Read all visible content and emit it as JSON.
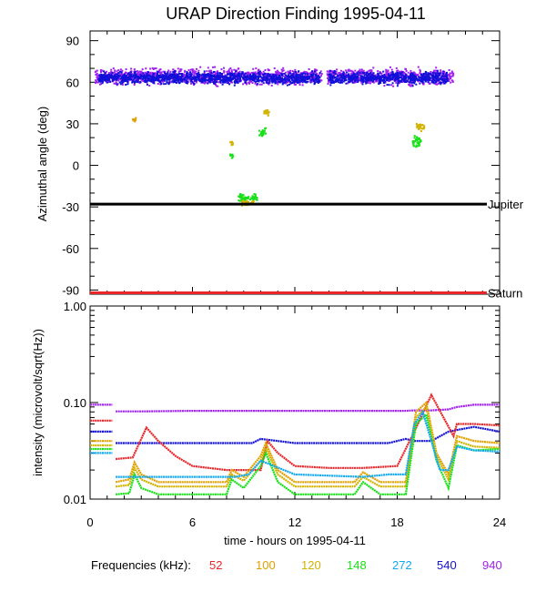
{
  "chart_data": [
    {
      "type": "scatter",
      "title": "URAP Direction Finding  1995-04-11",
      "ylabel": "Azimuthal angle (deg)",
      "xlim": [
        0,
        24
      ],
      "ylim": [
        -93,
        97
      ],
      "yticks": [
        90,
        60,
        30,
        0,
        -30,
        -60,
        -90
      ],
      "reference_lines": [
        {
          "name": "Jupiter",
          "y": -28,
          "color": "#000000"
        },
        {
          "name": "Saturn",
          "y": -92,
          "color": "#e8262a"
        }
      ],
      "clusters": [
        {
          "freq": "940",
          "x_range": [
            0.3,
            13.6
          ],
          "y_center": 64,
          "y_spread": 8
        },
        {
          "freq": "540",
          "x_range": [
            0.5,
            13.5
          ],
          "y_center": 63,
          "y_spread": 6
        },
        {
          "freq": "940",
          "x_range": [
            13.9,
            21.3
          ],
          "y_center": 64,
          "y_spread": 8
        },
        {
          "freq": "540",
          "x_range": [
            14.0,
            21.0
          ],
          "y_center": 63,
          "y_spread": 6
        },
        {
          "freq": "148",
          "x_range": [
            8.7,
            9.8
          ],
          "y_center": -24,
          "y_spread": 4
        },
        {
          "freq": "120",
          "x_range": [
            8.9,
            9.6
          ],
          "y_center": -27,
          "y_spread": 3
        },
        {
          "freq": "148",
          "x_range": [
            18.9,
            19.4
          ],
          "y_center": 17,
          "y_spread": 6
        },
        {
          "freq": "120",
          "x_range": [
            19.1,
            19.6
          ],
          "y_center": 28,
          "y_spread": 4
        },
        {
          "freq": "148",
          "x_range": [
            8.2,
            8.4
          ],
          "y_center": 7,
          "y_spread": 3
        },
        {
          "freq": "120",
          "x_range": [
            8.2,
            8.4
          ],
          "y_center": 16,
          "y_spread": 3
        },
        {
          "freq": "148",
          "x_range": [
            9.9,
            10.3
          ],
          "y_center": 24,
          "y_spread": 5
        },
        {
          "freq": "120",
          "x_range": [
            10.2,
            10.5
          ],
          "y_center": 38,
          "y_spread": 3
        },
        {
          "freq": "100",
          "x_range": [
            2.5,
            2.7
          ],
          "y_center": 33,
          "y_spread": 3
        }
      ]
    },
    {
      "type": "line",
      "ylabel": "intensity (microvolt/sqrt(Hz))",
      "xlabel": "time - hours on 1995-04-11",
      "xlim": [
        0,
        24
      ],
      "xticks": [
        0,
        6,
        12,
        18,
        24
      ],
      "ylim_log": [
        0.01,
        1.0
      ],
      "yticks": [
        "1.00",
        "0.10",
        "0.01"
      ],
      "ytick_values": [
        1.0,
        0.1,
        0.01
      ],
      "data_gap": [
        1.3,
        1.5
      ],
      "series": [
        {
          "freq": "940",
          "color": "#a020f0",
          "x": [
            0,
            1.3,
            1.5,
            3,
            6,
            9,
            12,
            15,
            17,
            18.5,
            19,
            20,
            21,
            21.5,
            22.5,
            24
          ],
          "y": [
            0.095,
            0.095,
            0.081,
            0.081,
            0.082,
            0.082,
            0.082,
            0.082,
            0.082,
            0.082,
            0.083,
            0.083,
            0.085,
            0.09,
            0.095,
            0.095
          ]
        },
        {
          "freq": "540",
          "color": "#1010d8",
          "x": [
            0,
            1.3,
            1.5,
            6,
            9.5,
            10,
            12,
            17.5,
            18.5,
            19,
            20,
            21,
            21.5,
            22.5,
            24
          ],
          "y": [
            0.05,
            0.05,
            0.038,
            0.038,
            0.038,
            0.042,
            0.038,
            0.038,
            0.042,
            0.04,
            0.04,
            0.05,
            0.052,
            0.056,
            0.05
          ]
        },
        {
          "freq": "52",
          "color": "#e8262a",
          "x": [
            0,
            1.3,
            1.5,
            2.5,
            3.3,
            4,
            5,
            6,
            8,
            10,
            10.4,
            11,
            12,
            14,
            16,
            18,
            19,
            20,
            21.3,
            21.5,
            22.5,
            24
          ],
          "y": [
            0.065,
            0.065,
            0.026,
            0.027,
            0.055,
            0.04,
            0.028,
            0.022,
            0.02,
            0.02,
            0.04,
            0.03,
            0.022,
            0.021,
            0.021,
            0.022,
            0.05,
            0.12,
            0.045,
            0.06,
            0.06,
            0.058
          ]
        },
        {
          "freq": "100",
          "color": "#e0a000",
          "x": [
            0,
            1.3,
            1.5,
            2.3,
            2.6,
            3,
            4,
            6,
            8,
            8.3,
            9,
            10,
            10.3,
            11,
            12,
            15.5,
            16,
            17,
            18.5,
            19.1,
            19.7,
            20.3,
            21,
            21.5,
            22.5,
            24
          ],
          "y": [
            0.04,
            0.04,
            0.015,
            0.016,
            0.024,
            0.018,
            0.015,
            0.015,
            0.015,
            0.02,
            0.017,
            0.028,
            0.038,
            0.02,
            0.015,
            0.015,
            0.019,
            0.015,
            0.015,
            0.08,
            0.1,
            0.03,
            0.018,
            0.045,
            0.04,
            0.038
          ]
        },
        {
          "freq": "120",
          "color": "#d2b400",
          "x": [
            0,
            1.3,
            1.5,
            2.3,
            2.6,
            3,
            4,
            6,
            8,
            8.3,
            9,
            10,
            10.3,
            11,
            12,
            15.5,
            16,
            17,
            18.5,
            19.1,
            19.7,
            20.3,
            21,
            21.5,
            22.5,
            24
          ],
          "y": [
            0.036,
            0.036,
            0.0135,
            0.014,
            0.021,
            0.016,
            0.0135,
            0.0135,
            0.0135,
            0.018,
            0.0155,
            0.025,
            0.034,
            0.018,
            0.0135,
            0.0135,
            0.017,
            0.0135,
            0.0135,
            0.07,
            0.09,
            0.028,
            0.016,
            0.04,
            0.035,
            0.034
          ]
        },
        {
          "freq": "148",
          "color": "#18e018",
          "x": [
            0,
            1.3,
            1.5,
            2.3,
            2.6,
            3,
            4,
            6,
            8,
            8.3,
            9,
            10,
            10.3,
            11,
            12,
            15.5,
            16,
            17,
            18.5,
            19.1,
            19.7,
            20.3,
            21,
            21.5,
            22.5,
            24
          ],
          "y": [
            0.033,
            0.033,
            0.0112,
            0.0115,
            0.018,
            0.013,
            0.0112,
            0.0112,
            0.0112,
            0.016,
            0.013,
            0.022,
            0.03,
            0.015,
            0.0112,
            0.0112,
            0.015,
            0.0112,
            0.0112,
            0.06,
            0.075,
            0.025,
            0.013,
            0.036,
            0.032,
            0.033
          ]
        },
        {
          "freq": "272",
          "color": "#10a8f0",
          "x": [
            0,
            1.3,
            1.5,
            6,
            8.5,
            9.3,
            10,
            12,
            16,
            17.5,
            18.5,
            19,
            19.5,
            20.5,
            21,
            21.5,
            22.5,
            24
          ],
          "y": [
            0.03,
            0.03,
            0.017,
            0.017,
            0.017,
            0.018,
            0.025,
            0.018,
            0.017,
            0.018,
            0.018,
            0.06,
            0.08,
            0.02,
            0.02,
            0.035,
            0.032,
            0.031
          ]
        }
      ]
    }
  ],
  "legend": {
    "label": "Frequencies (kHz):",
    "items": [
      {
        "freq": "52",
        "color": "#e8262a"
      },
      {
        "freq": "100",
        "color": "#e0a000"
      },
      {
        "freq": "120",
        "color": "#d2b400"
      },
      {
        "freq": "148",
        "color": "#18e018"
      },
      {
        "freq": "272",
        "color": "#10a8f0"
      },
      {
        "freq": "540",
        "color": "#1010d8"
      },
      {
        "freq": "940",
        "color": "#a020f0"
      }
    ]
  }
}
